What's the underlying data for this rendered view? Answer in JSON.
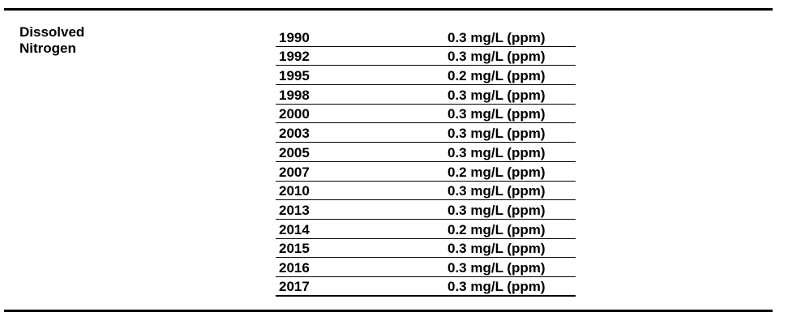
{
  "parameter": {
    "line1": "Dissolved",
    "line2": "Nitrogen"
  },
  "readings": [
    {
      "year": "1990",
      "value": "0.3 mg/L (ppm)"
    },
    {
      "year": "1992",
      "value": "0.3 mg/L (ppm)"
    },
    {
      "year": "1995",
      "value": "0.2 mg/L (ppm)"
    },
    {
      "year": "1998",
      "value": "0.3 mg/L (ppm)"
    },
    {
      "year": "2000",
      "value": "0.3 mg/L (ppm)"
    },
    {
      "year": "2003",
      "value": "0.3 mg/L (ppm)"
    },
    {
      "year": "2005",
      "value": "0.3 mg/L (ppm)"
    },
    {
      "year": "2007",
      "value": "0.2 mg/L (ppm)"
    },
    {
      "year": "2010",
      "value": "0.3 mg/L (ppm)"
    },
    {
      "year": "2013",
      "value": "0.3 mg/L (ppm)"
    },
    {
      "year": "2014",
      "value": "0.2 mg/L (ppm)"
    },
    {
      "year": "2015",
      "value": "0.3 mg/L (ppm)"
    },
    {
      "year": "2016",
      "value": "0.3 mg/L (ppm)"
    },
    {
      "year": "2017",
      "value": "0.3 mg/L (ppm)"
    }
  ]
}
